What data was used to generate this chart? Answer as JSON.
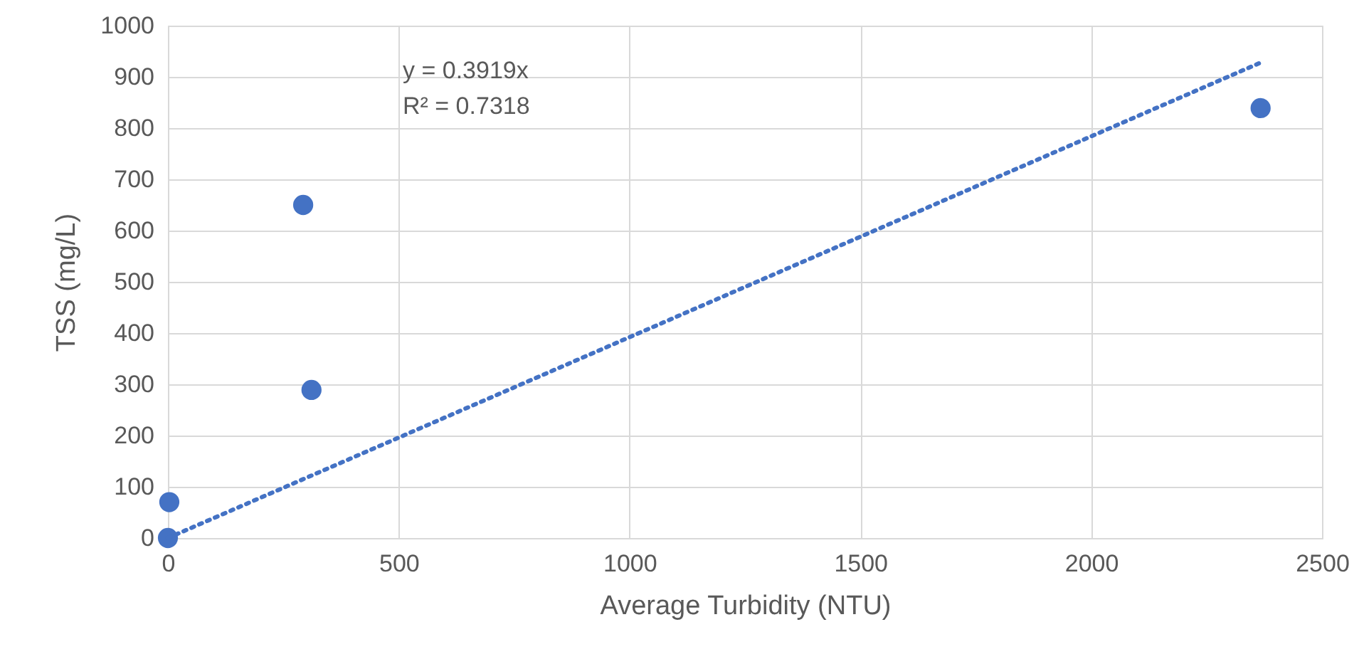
{
  "chart_data": {
    "type": "scatter",
    "xlabel": "Average Turbidity (NTU)",
    "ylabel": "TSS (mg/L)",
    "xlim": [
      0,
      2500
    ],
    "xticks": [
      0,
      500,
      1000,
      1500,
      2000,
      2500
    ],
    "ylim": [
      0,
      1000
    ],
    "yticks": [
      0,
      100,
      200,
      300,
      400,
      500,
      600,
      700,
      800,
      900,
      1000
    ],
    "grid": true,
    "marker": "circle",
    "series": [
      {
        "color": "#4472c4",
        "x": [
          0,
          3,
          293,
          311,
          2367
        ],
        "values": [
          0,
          70,
          650,
          289,
          839
        ]
      },
      {
        "type": "line",
        "color": "#4472c4",
        "line_style": "dotted",
        "marker": "none",
        "x": [
          0,
          2370
        ],
        "values": [
          0,
          929
        ]
      }
    ],
    "annotations": [
      "y = 0.3919x",
      "R² = 0.7318"
    ]
  }
}
